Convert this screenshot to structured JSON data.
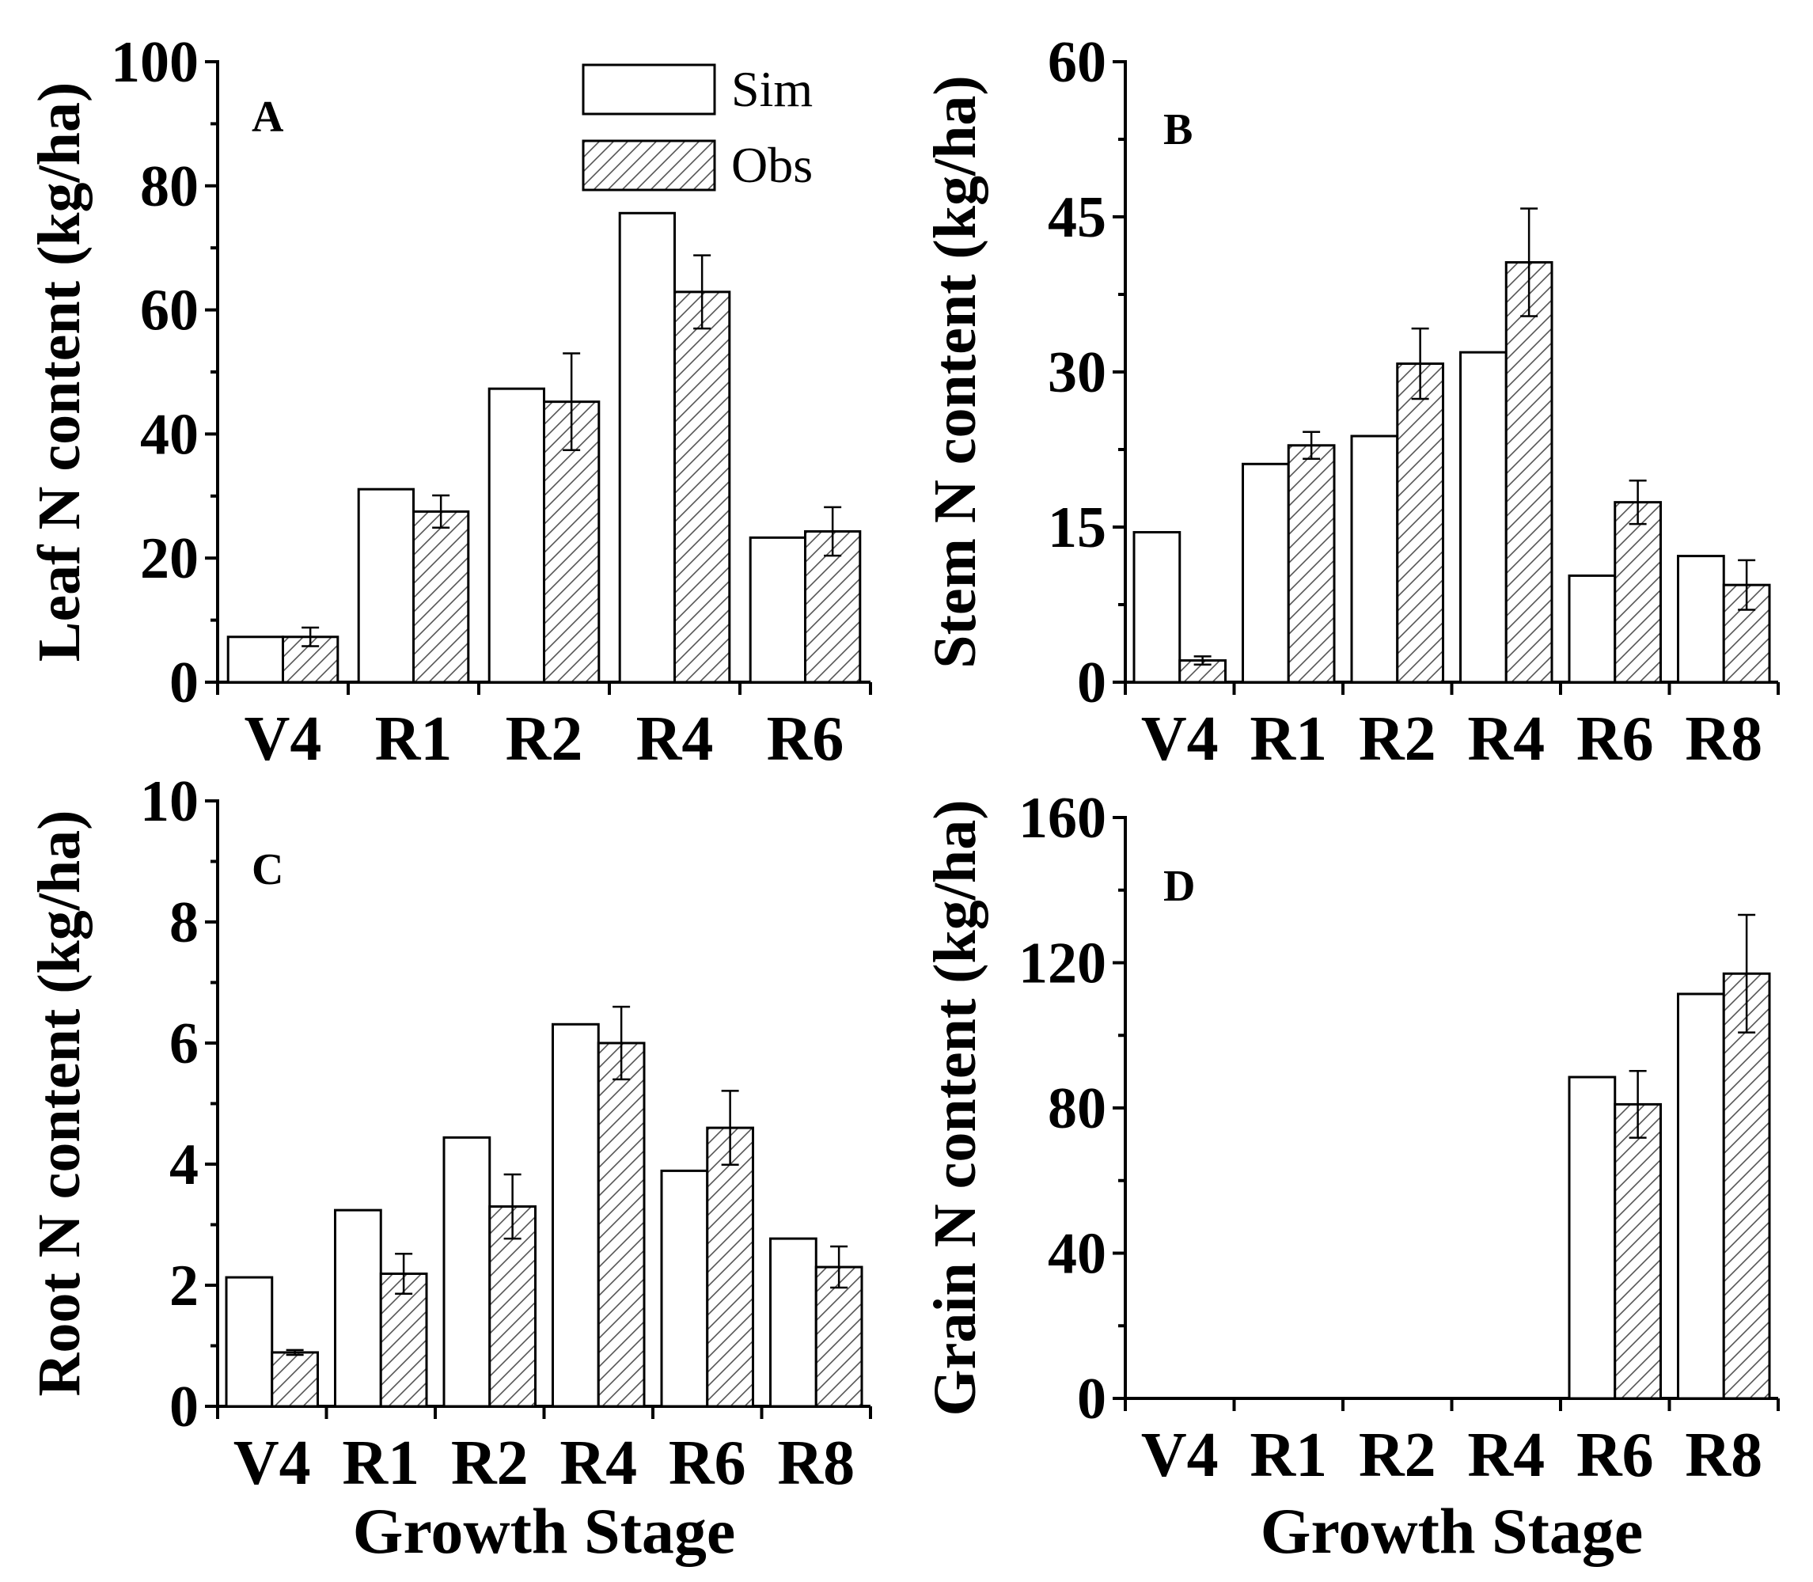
{
  "chart_data": [
    {
      "panel": "A",
      "type": "bar",
      "categories": [
        "V4",
        "R1",
        "R2",
        "R4",
        "R6"
      ],
      "series": [
        {
          "name": "Sim",
          "values": [
            7.3,
            31.1,
            47.3,
            75.6,
            23.3
          ]
        },
        {
          "name": "Obs",
          "values": [
            7.3,
            27.5,
            45.2,
            62.9,
            24.3
          ],
          "errors": [
            1.5,
            2.6,
            7.8,
            5.9,
            3.9
          ]
        }
      ],
      "ylabel": "Leaf N content (kg/ha)",
      "xlabel": "",
      "ylim": [
        0,
        100
      ],
      "yticks": [
        "0",
        "20",
        "40",
        "60",
        "80",
        "100"
      ],
      "legend": "top-center"
    },
    {
      "panel": "B",
      "type": "bar",
      "categories": [
        "V4",
        "R1",
        "R2",
        "R4",
        "R6",
        "R8"
      ],
      "series": [
        {
          "name": "Sim",
          "values": [
            14.5,
            21.1,
            23.8,
            31.9,
            10.3,
            12.2
          ]
        },
        {
          "name": "Obs",
          "values": [
            2.1,
            22.9,
            30.8,
            40.6,
            17.4,
            9.4
          ],
          "errors": [
            0.4,
            1.3,
            3.4,
            5.2,
            2.1,
            2.4
          ]
        }
      ],
      "ylabel": "Stem N content (kg/ha)",
      "xlabel": "",
      "ylim": [
        0,
        60
      ],
      "yticks": [
        "0",
        "15",
        "30",
        "45",
        "60"
      ]
    },
    {
      "panel": "C",
      "type": "bar",
      "categories": [
        "V4",
        "R1",
        "R2",
        "R4",
        "R6",
        "R8"
      ],
      "series": [
        {
          "name": "Sim",
          "values": [
            2.13,
            3.24,
            4.44,
            6.31,
            3.89,
            2.77
          ]
        },
        {
          "name": "Obs",
          "values": [
            0.89,
            2.19,
            3.3,
            6.0,
            4.6,
            2.3
          ],
          "errors": [
            0.04,
            0.33,
            0.53,
            0.6,
            0.61,
            0.34
          ]
        }
      ],
      "ylabel": "Root N content (kg/ha)",
      "xlabel": "Growth Stage",
      "ylim": [
        0,
        10
      ],
      "yticks": [
        "0",
        "2",
        "4",
        "6",
        "8",
        "10"
      ]
    },
    {
      "panel": "D",
      "type": "bar",
      "categories": [
        "V4",
        "R1",
        "R2",
        "R4",
        "R6",
        "R8"
      ],
      "series": [
        {
          "name": "Sim",
          "values": [
            0,
            0,
            0,
            0,
            88.5,
            111.4
          ]
        },
        {
          "name": "Obs",
          "values": [
            0,
            0,
            0,
            0,
            81.0,
            117.0
          ],
          "errors": [
            0,
            0,
            0,
            0,
            9.2,
            16.2
          ]
        }
      ],
      "ylabel": "Grain N content (kg/ha)",
      "xlabel": "Growth Stage",
      "ylim": [
        0,
        160
      ],
      "yticks": [
        "0",
        "40",
        "80",
        "120",
        "160"
      ]
    }
  ],
  "legend": {
    "sim_label": "Sim",
    "obs_label": "Obs"
  }
}
